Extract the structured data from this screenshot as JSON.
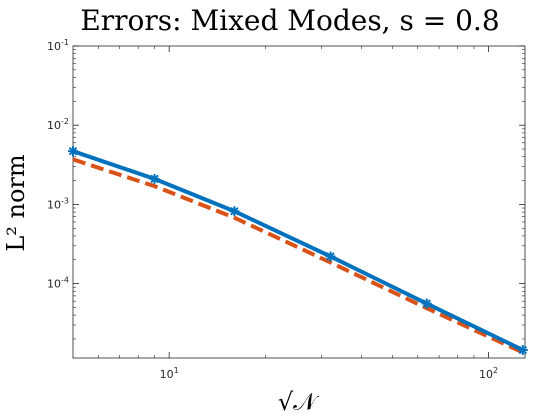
{
  "chart_data": {
    "type": "line",
    "title": "Errors: Mixed Modes, s = 0.8",
    "xlabel": "√𝒩",
    "ylabel": "L² norm",
    "xscale": "log",
    "yscale": "log",
    "xlim": [
      5,
      130
    ],
    "ylim": [
      1.15e-05,
      0.1
    ],
    "grid": false,
    "x_ticks": [
      {
        "value": 10,
        "base": "10",
        "exp": "1"
      },
      {
        "value": 100,
        "base": "10",
        "exp": "2"
      }
    ],
    "y_ticks": [
      {
        "value": 0.0001,
        "base": "10",
        "exp": "-4"
      },
      {
        "value": 0.001,
        "base": "10",
        "exp": "-3"
      },
      {
        "value": 0.01,
        "base": "10",
        "exp": "-2"
      },
      {
        "value": 0.1,
        "base": "10",
        "exp": "-1"
      }
    ],
    "series": [
      {
        "color": "#0072BD",
        "style": "solid",
        "marker": "star",
        "x": [
          5,
          9,
          16,
          32,
          64,
          128
        ],
        "y": [
          0.0047,
          0.0021,
          0.00082,
          0.00022,
          5.6e-05,
          1.45e-05
        ]
      },
      {
        "color": "#D95319",
        "style": "dashed",
        "marker": "none",
        "x": [
          5,
          9,
          16,
          32,
          64,
          128
        ],
        "y": [
          0.0037,
          0.0017,
          0.00068,
          0.000185,
          4.9e-05,
          1.35e-05
        ]
      }
    ]
  }
}
